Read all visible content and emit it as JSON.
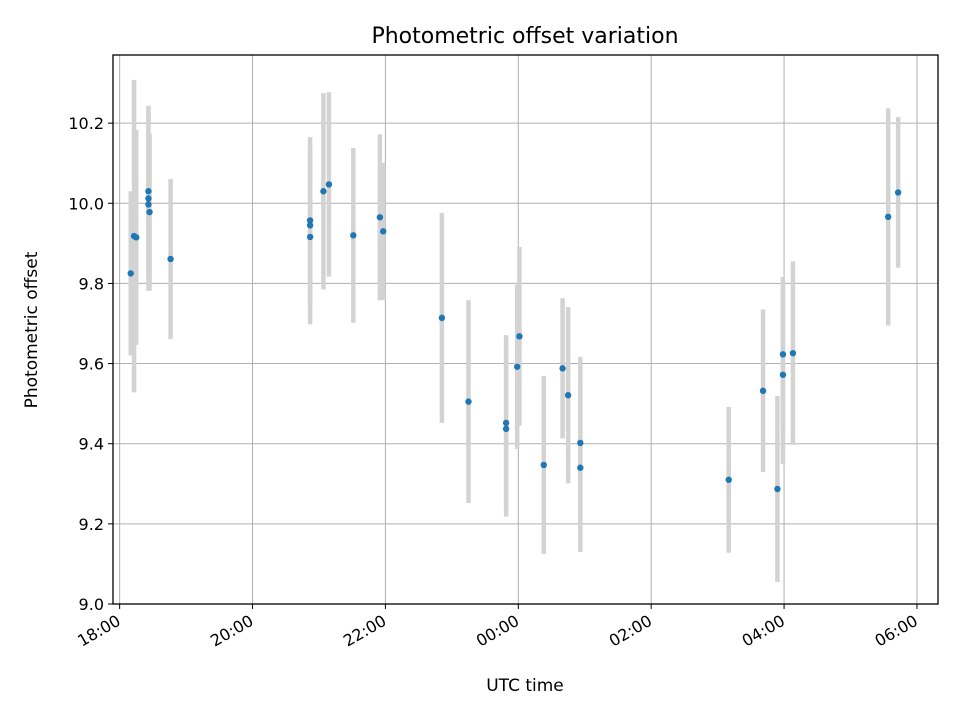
{
  "chart_data": {
    "type": "scatter",
    "title": "Photometric offset variation",
    "xlabel": "UTC time",
    "ylabel": "Photometric offset",
    "grid": true,
    "x_ticks": [
      "18:00",
      "20:00",
      "22:00",
      "00:00",
      "02:00",
      "04:00",
      "06:00"
    ],
    "y_ticks": [
      "9.0",
      "9.2",
      "9.4",
      "9.6",
      "9.8",
      "10.0",
      "10.2"
    ],
    "x_unit": "UTC time",
    "xlim": [
      "17:54",
      "06:19"
    ],
    "ylim": [
      9.0,
      10.37
    ],
    "colors": {
      "point": "#1f77b4",
      "errorbar": "#d3d3d3",
      "grid": "#b0b0b0"
    },
    "points": [
      {
        "x": "18:10",
        "y": 9.825,
        "err": 0.205
      },
      {
        "x": "18:13",
        "y": 9.918,
        "err": 0.39
      },
      {
        "x": "18:15",
        "y": 9.915,
        "err": 0.268
      },
      {
        "x": "18:26",
        "y": 10.03,
        "err": 0.213
      },
      {
        "x": "18:26",
        "y": 10.012,
        "err": 0.231
      },
      {
        "x": "18:26",
        "y": 9.997,
        "err": 0.176
      },
      {
        "x": "18:27",
        "y": 9.978,
        "err": 0.196
      },
      {
        "x": "18:46",
        "y": 9.861,
        "err": 0.2
      },
      {
        "x": "20:52",
        "y": 9.957,
        "err": 0.208
      },
      {
        "x": "20:52",
        "y": 9.945,
        "err": 0.195
      },
      {
        "x": "20:52",
        "y": 9.916,
        "err": 0.218
      },
      {
        "x": "21:04",
        "y": 10.03,
        "err": 0.245
      },
      {
        "x": "21:09",
        "y": 10.047,
        "err": 0.23
      },
      {
        "x": "21:31",
        "y": 9.92,
        "err": 0.218
      },
      {
        "x": "21:55",
        "y": 9.965,
        "err": 0.207
      },
      {
        "x": "21:58",
        "y": 9.93,
        "err": 0.171
      },
      {
        "x": "22:51",
        "y": 9.714,
        "err": 0.262
      },
      {
        "x": "23:15",
        "y": 9.505,
        "err": 0.253
      },
      {
        "x": "23:49",
        "y": 9.452,
        "err": 0.219
      },
      {
        "x": "23:49",
        "y": 9.437,
        "err": 0.219
      },
      {
        "x": "23:59",
        "y": 9.592,
        "err": 0.205
      },
      {
        "x": "24:01",
        "y": 9.668,
        "err": 0.223
      },
      {
        "x": "24:23",
        "y": 9.347,
        "err": 0.222
      },
      {
        "x": "24:40",
        "y": 9.588,
        "err": 0.175
      },
      {
        "x": "24:45",
        "y": 9.521,
        "err": 0.22
      },
      {
        "x": "24:56",
        "y": 9.402,
        "err": 0.215
      },
      {
        "x": "24:56",
        "y": 9.34,
        "err": 0.21
      },
      {
        "x": "27:10",
        "y": 9.31,
        "err": 0.182
      },
      {
        "x": "27:41",
        "y": 9.532,
        "err": 0.203
      },
      {
        "x": "27:54",
        "y": 9.287,
        "err": 0.232
      },
      {
        "x": "27:59",
        "y": 9.623,
        "err": 0.193
      },
      {
        "x": "27:59",
        "y": 9.572,
        "err": 0.223
      },
      {
        "x": "28:08",
        "y": 9.626,
        "err": 0.229
      },
      {
        "x": "29:34",
        "y": 9.966,
        "err": 0.271
      },
      {
        "x": "29:43",
        "y": 10.027,
        "err": 0.188
      }
    ]
  }
}
